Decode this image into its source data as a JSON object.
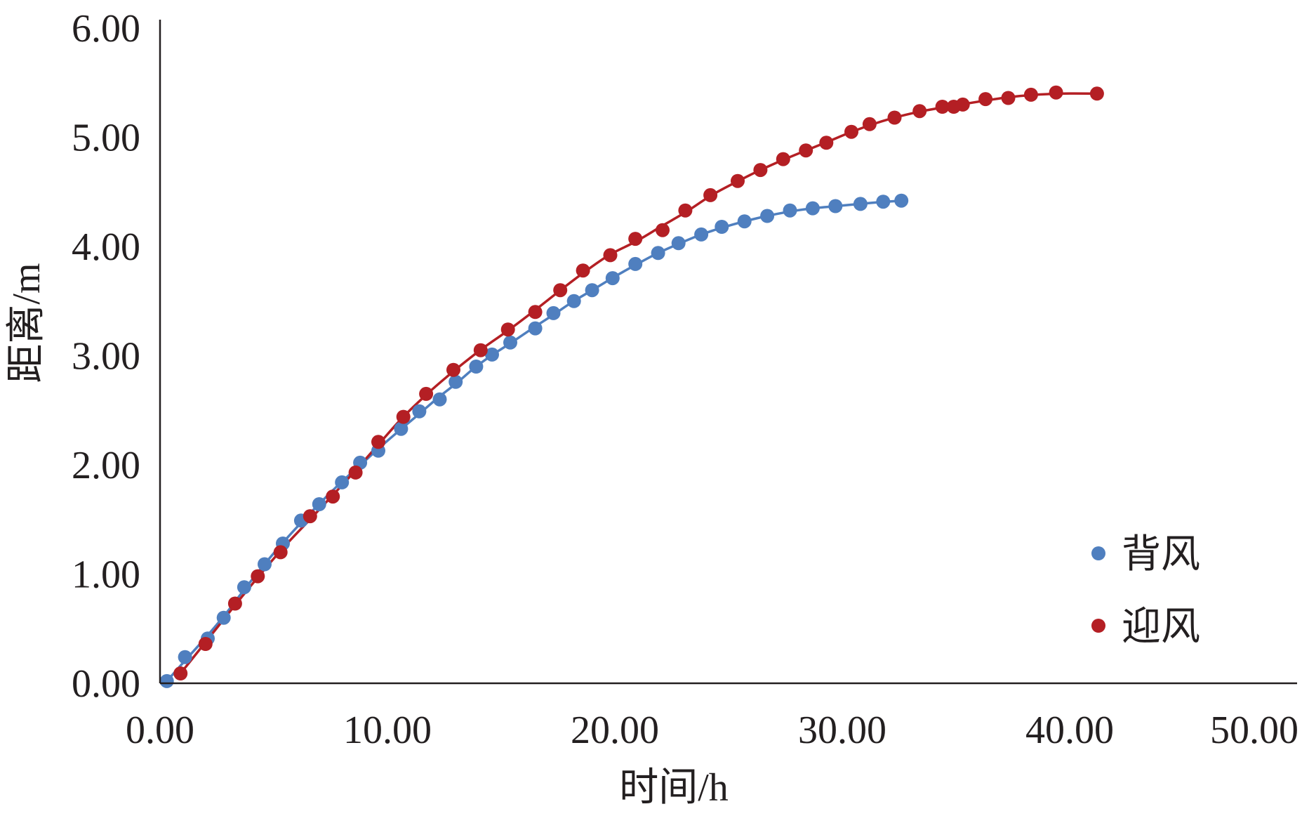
{
  "chart_data": {
    "type": "scatter",
    "xlabel": "时间/h",
    "ylabel": "距离/m",
    "xlim": [
      0,
      50
    ],
    "ylim": [
      0,
      6
    ],
    "x_ticks": [
      "0.00",
      "10.00",
      "20.00",
      "30.00",
      "40.00",
      "50.00"
    ],
    "y_ticks": [
      "0.00",
      "1.00",
      "2.00",
      "3.00",
      "4.00",
      "5.00",
      "6.00"
    ],
    "grid": false,
    "legend_position": "right",
    "series": [
      {
        "name": "背风",
        "color": "#4f7fbf",
        "marker": "circle",
        "trendline": true,
        "points": [
          [
            0.3,
            0.02
          ],
          [
            1.1,
            0.24
          ],
          [
            2.1,
            0.41
          ],
          [
            2.8,
            0.6
          ],
          [
            3.7,
            0.88
          ],
          [
            4.6,
            1.09
          ],
          [
            5.4,
            1.28
          ],
          [
            6.2,
            1.49
          ],
          [
            7.0,
            1.64
          ],
          [
            8.0,
            1.84
          ],
          [
            8.8,
            2.02
          ],
          [
            9.6,
            2.13
          ],
          [
            10.6,
            2.33
          ],
          [
            11.4,
            2.49
          ],
          [
            12.3,
            2.6
          ],
          [
            13.0,
            2.76
          ],
          [
            13.9,
            2.9
          ],
          [
            14.6,
            3.01
          ],
          [
            15.4,
            3.12
          ],
          [
            16.5,
            3.25
          ],
          [
            17.3,
            3.39
          ],
          [
            18.2,
            3.5
          ],
          [
            19.0,
            3.6
          ],
          [
            19.9,
            3.71
          ],
          [
            20.9,
            3.84
          ],
          [
            21.9,
            3.94
          ],
          [
            22.8,
            4.03
          ],
          [
            23.8,
            4.11
          ],
          [
            24.7,
            4.18
          ],
          [
            25.7,
            4.23
          ],
          [
            26.7,
            4.28
          ],
          [
            27.7,
            4.33
          ],
          [
            28.7,
            4.35
          ],
          [
            29.7,
            4.37
          ],
          [
            30.8,
            4.39
          ],
          [
            31.8,
            4.41
          ],
          [
            32.6,
            4.42
          ]
        ]
      },
      {
        "name": "迎风",
        "color": "#b41f24",
        "marker": "circle",
        "trendline": true,
        "points": [
          [
            0.9,
            0.09
          ],
          [
            2.0,
            0.36
          ],
          [
            3.3,
            0.73
          ],
          [
            4.3,
            0.98
          ],
          [
            5.3,
            1.2
          ],
          [
            6.6,
            1.53
          ],
          [
            7.6,
            1.71
          ],
          [
            8.6,
            1.93
          ],
          [
            9.6,
            2.21
          ],
          [
            10.7,
            2.44
          ],
          [
            11.7,
            2.65
          ],
          [
            12.9,
            2.87
          ],
          [
            14.1,
            3.05
          ],
          [
            15.3,
            3.24
          ],
          [
            16.5,
            3.4
          ],
          [
            17.6,
            3.6
          ],
          [
            18.6,
            3.78
          ],
          [
            19.8,
            3.92
          ],
          [
            20.9,
            4.07
          ],
          [
            22.1,
            4.15
          ],
          [
            23.1,
            4.33
          ],
          [
            24.2,
            4.47
          ],
          [
            25.4,
            4.6
          ],
          [
            26.4,
            4.7
          ],
          [
            27.4,
            4.8
          ],
          [
            28.4,
            4.88
          ],
          [
            29.3,
            4.95
          ],
          [
            30.4,
            5.05
          ],
          [
            31.2,
            5.12
          ],
          [
            32.3,
            5.18
          ],
          [
            33.4,
            5.24
          ],
          [
            34.4,
            5.28
          ],
          [
            34.9,
            5.28
          ],
          [
            35.3,
            5.3
          ],
          [
            36.3,
            5.35
          ],
          [
            37.3,
            5.36
          ],
          [
            38.3,
            5.39
          ],
          [
            39.4,
            5.41
          ],
          [
            41.2,
            5.4
          ]
        ]
      }
    ]
  }
}
